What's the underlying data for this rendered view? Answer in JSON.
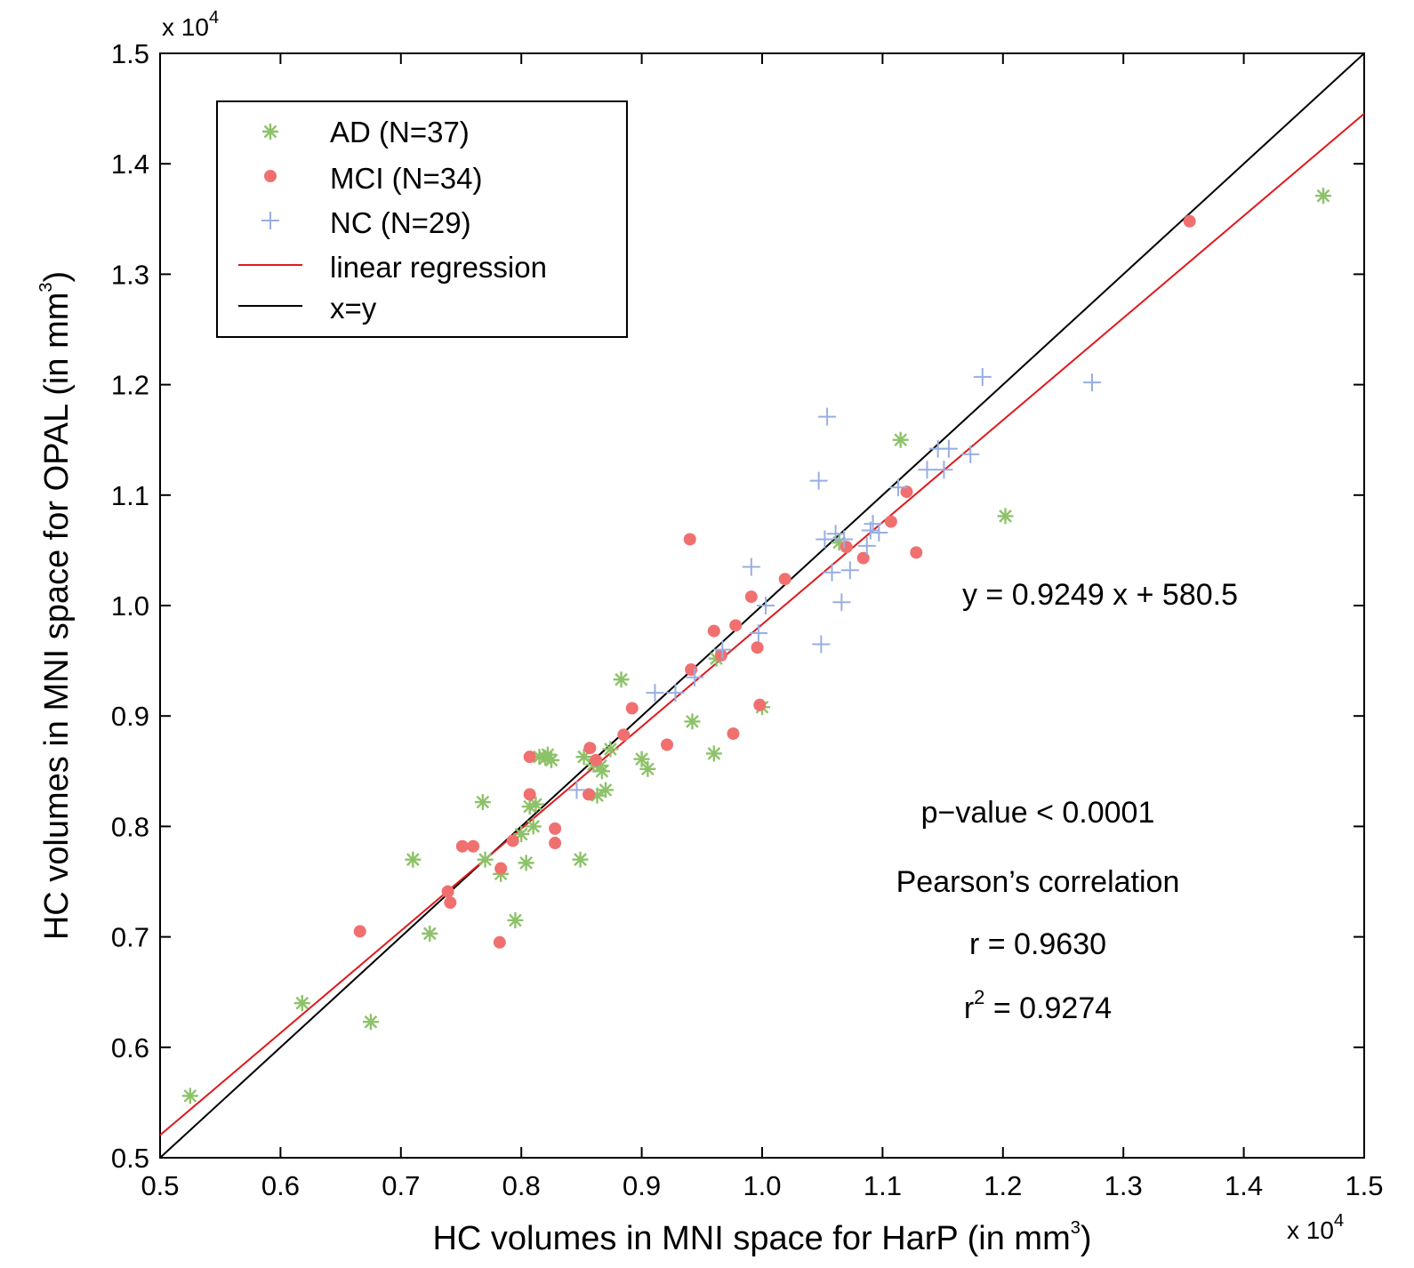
{
  "chart_data": {
    "type": "scatter",
    "xlabel_main": "HC volumes in MNI space for HarP (in mm",
    "xlabel_sup": "3",
    "xlabel_end": ")",
    "ylabel_main": "HC volumes in MNI space for OPAL (in mm",
    "ylabel_sup": "3",
    "ylabel_end": ")",
    "scale_base": "x 10",
    "scale_exp": "4",
    "xlim": [
      0.5,
      1.5
    ],
    "ylim": [
      0.5,
      1.5
    ],
    "xticks": [
      "0.5",
      "0.6",
      "0.7",
      "0.8",
      "0.9",
      "1.0",
      "1.1",
      "1.2",
      "1.3",
      "1.4",
      "1.5"
    ],
    "yticks": [
      "0.5",
      "0.6",
      "0.7",
      "0.8",
      "0.9",
      "1.0",
      "1.1",
      "1.2",
      "1.3",
      "1.4",
      "1.5"
    ],
    "legend": {
      "position": "top-left",
      "entries": [
        {
          "label": "AD (N=37)",
          "kind": "star",
          "color": "#8dc26a"
        },
        {
          "label": "MCI (N=34)",
          "kind": "dot",
          "color": "#f07070"
        },
        {
          "label": "NC (N=29)",
          "kind": "plus",
          "color": "#98aee2"
        },
        {
          "label": "linear regression",
          "kind": "line",
          "color": "#e0191d"
        },
        {
          "label": "x=y",
          "kind": "line",
          "color": "#000000"
        }
      ]
    },
    "series": [
      {
        "name": "AD (N=37)",
        "marker": "star",
        "color": "#8dc26a",
        "points": [
          [
            0.525,
            0.556
          ],
          [
            0.618,
            0.64
          ],
          [
            0.675,
            0.623
          ],
          [
            0.71,
            0.77
          ],
          [
            0.724,
            0.703
          ],
          [
            0.768,
            0.822
          ],
          [
            0.77,
            0.77
          ],
          [
            0.783,
            0.757
          ],
          [
            0.795,
            0.715
          ],
          [
            0.8,
            0.793
          ],
          [
            0.804,
            0.767
          ],
          [
            0.807,
            0.818
          ],
          [
            0.81,
            0.8
          ],
          [
            0.812,
            0.82
          ],
          [
            0.815,
            0.863
          ],
          [
            0.82,
            0.862
          ],
          [
            0.822,
            0.865
          ],
          [
            0.849,
            0.77
          ],
          [
            0.852,
            0.863
          ],
          [
            0.86,
            0.856
          ],
          [
            0.863,
            0.828
          ],
          [
            0.866,
            0.855
          ],
          [
            0.87,
            0.833
          ],
          [
            0.874,
            0.87
          ],
          [
            0.883,
            0.933
          ],
          [
            0.9,
            0.861
          ],
          [
            0.905,
            0.852
          ],
          [
            0.942,
            0.895
          ],
          [
            0.96,
            0.866
          ],
          [
            0.962,
            0.952
          ],
          [
            1.0,
            0.908
          ],
          [
            1.064,
            1.057
          ],
          [
            1.115,
            1.15
          ],
          [
            1.202,
            1.081
          ],
          [
            1.466,
            1.371
          ],
          [
            0.867,
            0.85
          ],
          [
            0.825,
            0.86
          ]
        ]
      },
      {
        "name": "MCI (N=34)",
        "marker": "dot",
        "color": "#f07070",
        "points": [
          [
            0.666,
            0.705
          ],
          [
            0.739,
            0.741
          ],
          [
            0.741,
            0.731
          ],
          [
            0.751,
            0.782
          ],
          [
            0.76,
            0.782
          ],
          [
            0.782,
            0.695
          ],
          [
            0.783,
            0.762
          ],
          [
            0.793,
            0.787
          ],
          [
            0.807,
            0.863
          ],
          [
            0.807,
            0.829
          ],
          [
            0.828,
            0.798
          ],
          [
            0.828,
            0.785
          ],
          [
            0.856,
            0.829
          ],
          [
            0.857,
            0.871
          ],
          [
            0.885,
            0.883
          ],
          [
            0.892,
            0.907
          ],
          [
            0.921,
            0.874
          ],
          [
            0.94,
            1.06
          ],
          [
            0.941,
            0.942
          ],
          [
            0.96,
            0.977
          ],
          [
            0.966,
            0.955
          ],
          [
            0.976,
            0.884
          ],
          [
            0.978,
            0.982
          ],
          [
            0.991,
            1.008
          ],
          [
            0.996,
            0.962
          ],
          [
            0.998,
            0.91
          ],
          [
            1.019,
            1.024
          ],
          [
            1.07,
            1.053
          ],
          [
            1.084,
            1.043
          ],
          [
            1.107,
            1.076
          ],
          [
            1.12,
            1.103
          ],
          [
            1.128,
            1.048
          ],
          [
            1.355,
            1.348
          ],
          [
            0.862,
            0.86
          ]
        ]
      },
      {
        "name": "NC (N=29)",
        "marker": "plus",
        "color": "#98aee2",
        "points": [
          [
            0.846,
            0.833
          ],
          [
            0.911,
            0.921
          ],
          [
            0.928,
            0.921
          ],
          [
            0.944,
            0.935
          ],
          [
            0.967,
            0.96
          ],
          [
            0.991,
            1.035
          ],
          [
            0.997,
            0.975
          ],
          [
            1.003,
            1.0
          ],
          [
            1.047,
            1.113
          ],
          [
            1.049,
            0.965
          ],
          [
            1.052,
            1.06
          ],
          [
            1.054,
            1.171
          ],
          [
            1.058,
            1.03
          ],
          [
            1.061,
            1.065
          ],
          [
            1.066,
            1.003
          ],
          [
            1.073,
            1.032
          ],
          [
            1.087,
            1.054
          ],
          [
            1.092,
            1.074
          ],
          [
            1.097,
            1.066
          ],
          [
            1.113,
            1.107
          ],
          [
            1.137,
            1.123
          ],
          [
            1.146,
            1.142
          ],
          [
            1.151,
            1.123
          ],
          [
            1.155,
            1.142
          ],
          [
            1.173,
            1.137
          ],
          [
            1.183,
            1.207
          ],
          [
            1.274,
            1.202
          ],
          [
            1.068,
            1.06
          ],
          [
            1.09,
            1.068
          ]
        ]
      }
    ],
    "regression": {
      "label": "linear regression",
      "slope": 0.9249,
      "intercept_scaled": 0.05805,
      "color": "#e0191d"
    },
    "identity": {
      "label": "x=y",
      "color": "#000000"
    },
    "annotations": {
      "equation": "y = 0.9249 x + 580.5",
      "pvalue": "p−value < 0.0001",
      "pearson": "Pearson’s correlation",
      "r": "r = 0.9630",
      "r2_prefix": "r",
      "r2_sup": "2",
      "r2_rest": " = 0.9274"
    }
  }
}
